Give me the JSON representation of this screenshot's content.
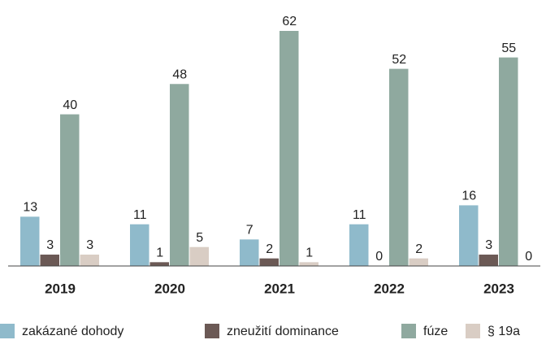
{
  "chart_data": {
    "type": "bar",
    "categories": [
      "2019",
      "2020",
      "2021",
      "2022",
      "2023"
    ],
    "series": [
      {
        "name": "zakázané dohody",
        "color": "#8fbacb",
        "values": [
          13,
          11,
          7,
          11,
          16
        ]
      },
      {
        "name": "zneužití dominance",
        "color": "#6b5955",
        "values": [
          3,
          1,
          2,
          0,
          3
        ]
      },
      {
        "name": "fúze",
        "color": "#8fa99f",
        "values": [
          40,
          48,
          62,
          52,
          55
        ]
      },
      {
        "name": "§ 19a",
        "color": "#d9cdc4",
        "values": [
          3,
          5,
          1,
          2,
          0
        ]
      }
    ]
  }
}
